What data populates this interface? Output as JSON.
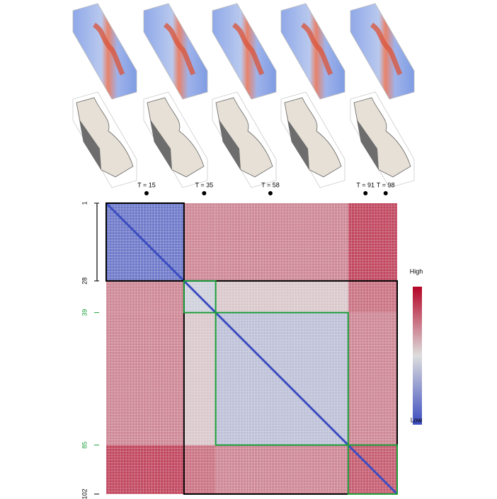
{
  "chart_data": {
    "type": "heatmap",
    "time_markers": [
      {
        "value": 15,
        "label": "T = 15"
      },
      {
        "value": 35,
        "label": "T = 35"
      },
      {
        "value": 58,
        "label": "T = 58"
      },
      {
        "value": 91,
        "label": "T = 91"
      },
      {
        "value": 98,
        "label": "T = 98"
      }
    ],
    "ylim": [
      1,
      102
    ],
    "yticks": [
      1,
      28,
      39,
      85,
      102
    ],
    "ytick_colors": [
      "#000000",
      "#000000",
      "#1a9e3a",
      "#1a9e3a",
      "#000000"
    ],
    "segments": [
      1,
      28,
      39,
      85,
      102
    ],
    "matrix": [
      [
        0.15,
        0.7,
        0.7,
        0.85
      ],
      [
        0.7,
        0.45,
        0.55,
        0.75
      ],
      [
        0.7,
        0.55,
        0.4,
        0.7
      ],
      [
        0.85,
        0.75,
        0.7,
        0.8
      ]
    ],
    "diagonal": 0,
    "vlim": [
      0,
      1
    ],
    "colormap": [
      "#3b4cc0",
      "#dddddd",
      "#b40426"
    ],
    "boxes": [
      {
        "from": 1,
        "to": 28,
        "color": "#000000"
      },
      {
        "from": 28,
        "to": 102,
        "color": "#000000"
      },
      {
        "from": 28,
        "to": 39,
        "color": "#1a9e3a"
      },
      {
        "from": 39,
        "to": 85,
        "color": "#1a9e3a"
      },
      {
        "from": 85,
        "to": 102,
        "color": "#1a9e3a"
      }
    ],
    "colorbar_labels": [
      "High",
      "Low"
    ]
  }
}
